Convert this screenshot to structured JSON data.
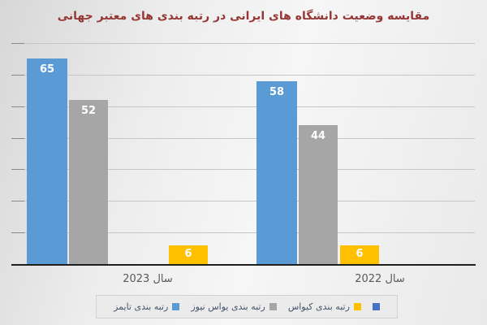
{
  "chart_data": {
    "type": "bar",
    "title": "مقایسه وضعیت دانشگاه های ایرانی در رتبه بندی  های معتبر جهانی",
    "title_color": "#953735",
    "categories": [
      "سال 2023",
      "سال 2022"
    ],
    "series": [
      {
        "name": "رتبه بندی تایمز",
        "color": "#5B9BD5",
        "values": [
          65,
          58
        ]
      },
      {
        "name": "رتبه بندی یواس نیوز",
        "color": "#A6A6A6",
        "values": [
          52,
          44
        ]
      },
      {
        "name": "رتبه بندی کیواس",
        "color": "#FFC000",
        "values": [
          6,
          6
        ]
      }
    ],
    "extra_legend_marker": {
      "label": "",
      "color": "#4472C4"
    },
    "xlabel": "",
    "ylabel": "",
    "ylim": [
      0,
      70
    ],
    "gridline_step": 10,
    "grid": true,
    "legend_position": "bottom",
    "rtl": true,
    "value_label_style": "white bold, inside top of bar"
  }
}
